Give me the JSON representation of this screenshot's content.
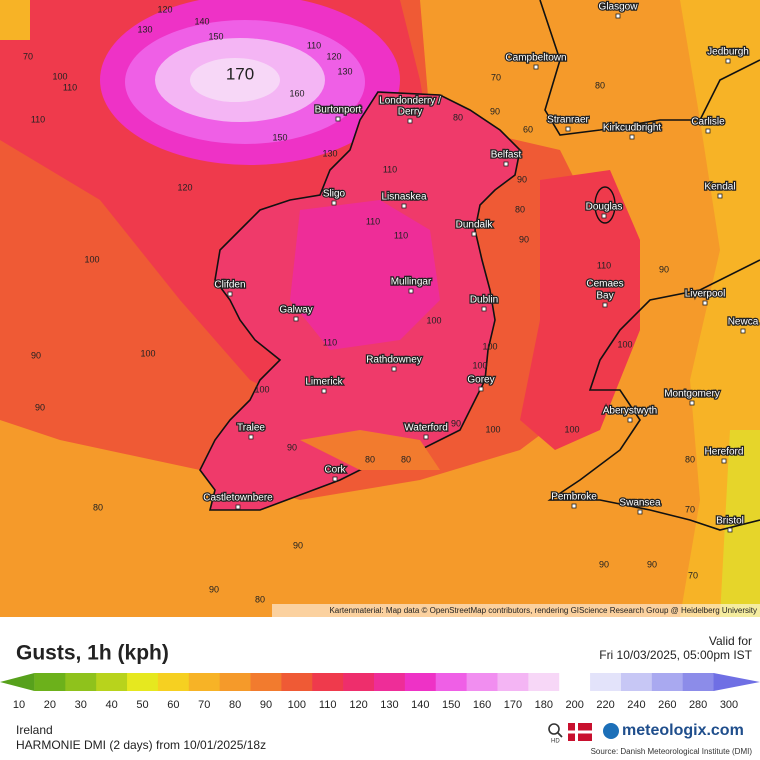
{
  "map": {
    "attribution": "Kartenmaterial: Map data © OpenStreetMap contributors, rendering GIScience Research Group @ Heidelberg University",
    "cities": [
      "Glasgow",
      "Campbeltown",
      "Jedburgh",
      "Burtonport",
      "Londonderry /",
      "Derry",
      "Stranraer",
      "Kirkcudbright",
      "Carlisle",
      "Belfast",
      "Sligo",
      "Lisnaskea",
      "Kendal",
      "Douglas",
      "Dundalk",
      "Clifden",
      "Mullingar",
      "Cemaes",
      "Bay",
      "Liverpool",
      "Galway",
      "Dublin",
      "Newca",
      "Rathdowney",
      "Limerick",
      "Gorey",
      "Montgomery",
      "Aberystwyth",
      "Tralee",
      "Waterford",
      "Hereford",
      "Cork",
      "Castletownbere",
      "Pembroke",
      "Swansea",
      "Bristol"
    ],
    "big_label": 170,
    "contour_labels": [
      120,
      140,
      130,
      150,
      110,
      120,
      130,
      100,
      70,
      110,
      160,
      150,
      130,
      110,
      120,
      110,
      100,
      110,
      110,
      90,
      100,
      110,
      100,
      90,
      100,
      90,
      100,
      80,
      80,
      90,
      100,
      100,
      80,
      90,
      90,
      80,
      90,
      80,
      70,
      60,
      80,
      90,
      90,
      100,
      110,
      80,
      90,
      90,
      70,
      80,
      70,
      90,
      100
    ]
  },
  "panel": {
    "title": "Gusts, 1h (kph)",
    "valid_label": "Valid for",
    "valid_time": "Fri 10/03/2025, 05:00pm IST",
    "region": "Ireland",
    "model": "HARMONIE DMI (2 days) from 10/01/2025/18z",
    "hd": "HD",
    "brand": "meteologix.com",
    "source": "Source: Danish Meteorological Institute (DMI)"
  },
  "legend": {
    "stops": [
      {
        "value": 10,
        "color": "#57a11c"
      },
      {
        "value": 20,
        "color": "#6cb11b"
      },
      {
        "value": 30,
        "color": "#8fc21c"
      },
      {
        "value": 40,
        "color": "#b8d31c"
      },
      {
        "value": 50,
        "color": "#e6e81f"
      },
      {
        "value": 60,
        "color": "#f6d021"
      },
      {
        "value": 70,
        "color": "#f7b326"
      },
      {
        "value": 80,
        "color": "#f59a2a"
      },
      {
        "value": 90,
        "color": "#f27b2e"
      },
      {
        "value": 100,
        "color": "#ef5a35"
      },
      {
        "value": 110,
        "color": "#ef3a4c"
      },
      {
        "value": 120,
        "color": "#ee2e6c"
      },
      {
        "value": 130,
        "color": "#ee2d98"
      },
      {
        "value": 140,
        "color": "#ee32c6"
      },
      {
        "value": 150,
        "color": "#ef5fe6"
      },
      {
        "value": 160,
        "color": "#f18ef0"
      },
      {
        "value": 170,
        "color": "#f4b5f4"
      },
      {
        "value": 180,
        "color": "#f7d7f7"
      },
      {
        "value": 200,
        "color": "#ffffff"
      },
      {
        "value": 220,
        "color": "#e3e3fa"
      },
      {
        "value": 240,
        "color": "#c7c7f5"
      },
      {
        "value": 260,
        "color": "#a9a9f0"
      },
      {
        "value": 280,
        "color": "#8c8ce9"
      },
      {
        "value": 300,
        "color": "#6f6fe4"
      }
    ]
  }
}
